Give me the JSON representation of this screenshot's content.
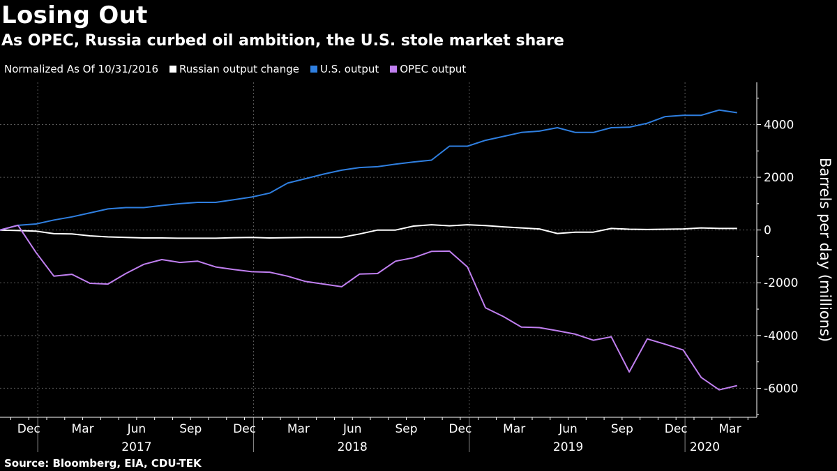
{
  "header": {
    "title": "Losing Out",
    "subtitle": "As OPEC, Russia curbed oil ambition, the U.S. stole market share"
  },
  "legend": {
    "note": "Normalized As Of 10/31/2016",
    "items": [
      {
        "label": "Russian output change",
        "color": "#ffffff"
      },
      {
        "label": "U.S. output",
        "color": "#2f7fe0"
      },
      {
        "label": "OPEC output",
        "color": "#c07ff0"
      }
    ]
  },
  "source": "Source: Bloomberg, EIA, CDU-TEK",
  "chart_data": {
    "type": "line",
    "title": "Losing Out",
    "ylabel": "Barrels per day (millions)",
    "ylim": [
      -7100,
      5600
    ],
    "yticks": [
      4000,
      2000,
      0,
      -2000,
      -4000,
      -6000
    ],
    "ytick_labels": [
      "4000",
      "2000",
      "0",
      "-2000",
      "-4000",
      "-6000"
    ],
    "x_start": "2016-10",
    "x_range_index": [
      0,
      41.2
    ],
    "x_ticks": [
      {
        "label": "Dec",
        "index": 1.6
      },
      {
        "label": "Mar",
        "index": 4.6
      },
      {
        "label": "Jun",
        "index": 7.6
      },
      {
        "label": "Sep",
        "index": 10.6
      },
      {
        "label": "Dec",
        "index": 13.6
      },
      {
        "label": "Mar",
        "index": 16.6
      },
      {
        "label": "Jun",
        "index": 19.6
      },
      {
        "label": "Sep",
        "index": 22.6
      },
      {
        "label": "Dec",
        "index": 25.6
      },
      {
        "label": "Mar",
        "index": 28.6
      },
      {
        "label": "Jun",
        "index": 31.6
      },
      {
        "label": "Sep",
        "index": 34.6
      },
      {
        "label": "Dec",
        "index": 37.6
      },
      {
        "label": "Mar",
        "index": 40.6
      }
    ],
    "years": [
      {
        "label": "2017",
        "index": 7.6
      },
      {
        "label": "2018",
        "index": 19.6
      },
      {
        "label": "2019",
        "index": 31.6
      },
      {
        "label": "2020",
        "index": 39.2
      }
    ],
    "year_separators": [
      2.1,
      14.1,
      26.1,
      38.1
    ],
    "x": [
      "2016-10",
      "2016-11",
      "2016-12",
      "2017-01",
      "2017-02",
      "2017-03",
      "2017-04",
      "2017-05",
      "2017-06",
      "2017-07",
      "2017-08",
      "2017-09",
      "2017-10",
      "2017-11",
      "2017-12",
      "2018-01",
      "2018-02",
      "2018-03",
      "2018-04",
      "2018-05",
      "2018-06",
      "2018-07",
      "2018-08",
      "2018-09",
      "2018-10",
      "2018-11",
      "2018-12",
      "2019-01",
      "2019-02",
      "2019-03",
      "2019-04",
      "2019-05",
      "2019-06",
      "2019-07",
      "2019-08",
      "2019-09",
      "2019-10",
      "2019-11",
      "2019-12",
      "2020-01",
      "2020-02",
      "2020-03"
    ],
    "series": [
      {
        "name": "Russian output change",
        "color": "#ffffff",
        "values": [
          0,
          -20,
          -40,
          -140,
          -150,
          -220,
          -260,
          -280,
          -300,
          -300,
          -310,
          -310,
          -310,
          -290,
          -280,
          -300,
          -290,
          -280,
          -280,
          -280,
          -150,
          0,
          0,
          150,
          200,
          160,
          200,
          170,
          120,
          80,
          40,
          -130,
          -80,
          -80,
          60,
          30,
          20,
          30,
          40,
          80,
          60,
          60
        ]
      },
      {
        "name": "U.S. output",
        "color": "#2f7fe0",
        "values": [
          0,
          180,
          230,
          380,
          500,
          650,
          800,
          850,
          850,
          930,
          1000,
          1050,
          1050,
          1150,
          1250,
          1400,
          1780,
          1950,
          2120,
          2270,
          2370,
          2400,
          2500,
          2580,
          2650,
          3180,
          3180,
          3400,
          3550,
          3700,
          3750,
          3880,
          3700,
          3700,
          3880,
          3900,
          4050,
          4300,
          4350,
          4350,
          4550,
          4450
        ]
      },
      {
        "name": "OPEC output",
        "color": "#c07ff0",
        "values": [
          0,
          180,
          -850,
          -1750,
          -1680,
          -2020,
          -2050,
          -1650,
          -1300,
          -1120,
          -1230,
          -1180,
          -1400,
          -1500,
          -1580,
          -1600,
          -1750,
          -1950,
          -2050,
          -2150,
          -1670,
          -1650,
          -1180,
          -1050,
          -810,
          -800,
          -1400,
          -2950,
          -3280,
          -3680,
          -3700,
          -3820,
          -3950,
          -4180,
          -4050,
          -5380,
          -4130,
          -4330,
          -4550,
          -5590,
          -6060,
          -5900
        ]
      }
    ]
  }
}
